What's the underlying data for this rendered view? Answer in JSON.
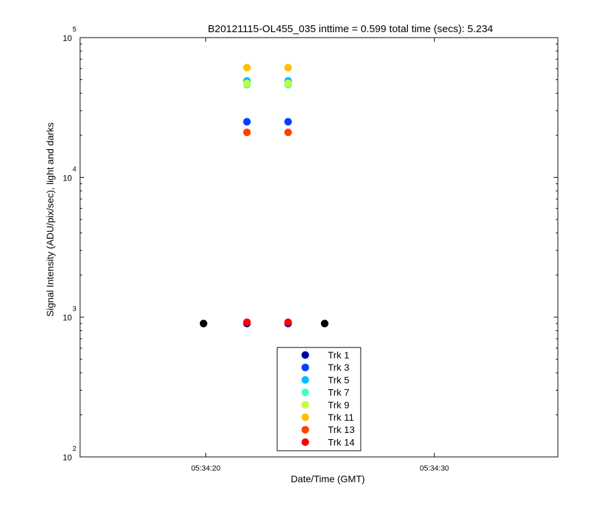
{
  "chart_data": {
    "type": "scatter",
    "title": "B20121115-OL455_035 inttime = 0.599 total time (secs): 5.234",
    "xlabel": "Date/Time (GMT)",
    "ylabel": "Signal Intensity (ADU/pix/sec), light and darks",
    "yscale": "log",
    "ylim": [
      100,
      100000
    ],
    "xlim": [
      "05:34:14.5",
      "05:34:35.4"
    ],
    "x_ticks": [
      {
        "value": "05:34:20",
        "label": "05:34:20"
      },
      {
        "value": "05:34:30",
        "label": "05:34:30"
      }
    ],
    "y_ticks": [
      {
        "value": 100,
        "base": "10",
        "exp": "2"
      },
      {
        "value": 1000,
        "base": "10",
        "exp": "3"
      },
      {
        "value": 10000,
        "base": "10",
        "exp": "4"
      },
      {
        "value": 100000,
        "base": "10",
        "exp": "5"
      }
    ],
    "legend_position": "bottom-center",
    "series": [
      {
        "name": "Trk 1",
        "color": "#0000aa",
        "points": [
          {
            "x": "05:34:21.8",
            "y": 900
          },
          {
            "x": "05:34:23.6",
            "y": 900
          }
        ]
      },
      {
        "name": "Trk 3",
        "color": "#0040ff",
        "points": [
          {
            "x": "05:34:21.8",
            "y": 25000
          },
          {
            "x": "05:34:23.6",
            "y": 25000
          }
        ]
      },
      {
        "name": "Trk 5",
        "color": "#00bfff",
        "points": [
          {
            "x": "05:34:21.8",
            "y": 49000
          },
          {
            "x": "05:34:23.6",
            "y": 49000
          }
        ]
      },
      {
        "name": "Trk 7",
        "color": "#40ffbf",
        "points": [
          {
            "x": "05:34:21.8",
            "y": 46000
          },
          {
            "x": "05:34:23.6",
            "y": 46000
          }
        ]
      },
      {
        "name": "Trk 9",
        "color": "#bfff40",
        "points": [
          {
            "x": "05:34:21.8",
            "y": 47000
          },
          {
            "x": "05:34:23.6",
            "y": 47000
          }
        ]
      },
      {
        "name": "Trk 11",
        "color": "#ffbf00",
        "points": [
          {
            "x": "05:34:21.8",
            "y": 61000
          },
          {
            "x": "05:34:23.6",
            "y": 61000
          }
        ]
      },
      {
        "name": "Trk 13",
        "color": "#ff4000",
        "points": [
          {
            "x": "05:34:21.8",
            "y": 21000
          },
          {
            "x": "05:34:23.6",
            "y": 21000
          }
        ]
      },
      {
        "name": "Trk 14",
        "color": "#ff0000",
        "points": [
          {
            "x": "05:34:21.8",
            "y": 920
          },
          {
            "x": "05:34:23.6",
            "y": 920
          }
        ]
      }
    ],
    "dark_points": {
      "color": "#000000",
      "points": [
        {
          "x": "05:34:19.9",
          "y": 900
        },
        {
          "x": "05:34:25.2",
          "y": 900
        }
      ]
    }
  }
}
